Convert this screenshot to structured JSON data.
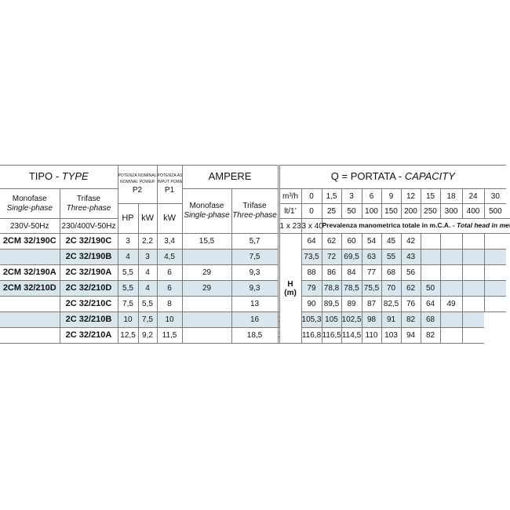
{
  "headers": {
    "tipo": "TIPO",
    "type": "TYPE",
    "potenza_nominale": "POTENZA NOMINALE",
    "nominal_power": "NOMINAL POWER",
    "p2": "P2",
    "potenza_assorbita": "POTENZA ASSORBITA",
    "input_power": "INPUT POWER",
    "p1": "P1",
    "ampere": "AMPERE",
    "q_portata": "Q = PORTATA",
    "capacity": "CAPACITY",
    "monofase": "Monofase",
    "single_phase": "Single-phase",
    "trifase": "Trifase",
    "three_phase": "Three-phase",
    "hp": "HP",
    "kw_p2": "kW",
    "kw_p1": "kW",
    "amp_monofase": "Monofase",
    "amp_single_phase": "Single-phase",
    "amp_trifase": "Trifase",
    "amp_three_phase": "Three-phase",
    "volt_mono": "230V-50Hz",
    "volt_tri": "230/400V-50Hz",
    "amp_volt_mono": "1 x 230V",
    "amp_volt_tri": "3 x 400V",
    "unit_m3h": "m³/h",
    "unit_ltmin": "lt/1’",
    "head_note": "Prevalenza manometrica totale in m.C.A.",
    "head_note_en": "Total head in meters w.c.",
    "h_label": "H",
    "h_unit": "(m)"
  },
  "flow_m3h": [
    "0",
    "1,5",
    "3",
    "6",
    "9",
    "12",
    "15",
    "18",
    "24",
    "30"
  ],
  "flow_lmin": [
    "0",
    "25",
    "50",
    "100",
    "150",
    "200",
    "250",
    "300",
    "400",
    "500"
  ],
  "rows": [
    {
      "mono": "2CM 32/190C",
      "tri": "2C 32/190C",
      "hp": "3",
      "kw2": "2,2",
      "kw1": "3,4",
      "amp_mono": "15,5",
      "amp_tri": "5,7",
      "heads": [
        "64",
        "62",
        "60",
        "54",
        "45",
        "42",
        "",
        "",
        "",
        ""
      ]
    },
    {
      "mono": "",
      "tri": "2C 32/190B",
      "hp": "4",
      "kw2": "3",
      "kw1": "4,5",
      "amp_mono": "",
      "amp_tri": "7,5",
      "heads": [
        "73,5",
        "72",
        "69,5",
        "63",
        "55",
        "43",
        "",
        "",
        "",
        ""
      ]
    },
    {
      "mono": "2CM 32/190A",
      "tri": "2C 32/190A",
      "hp": "5,5",
      "kw2": "4",
      "kw1": "6",
      "amp_mono": "29",
      "amp_tri": "9,3",
      "heads": [
        "88",
        "86",
        "84",
        "77",
        "68",
        "56",
        "",
        "",
        "",
        ""
      ]
    },
    {
      "mono": "2CM 32/210D",
      "tri": "2C 32/210D",
      "hp": "5,5",
      "kw2": "4",
      "kw1": "6",
      "amp_mono": "29",
      "amp_tri": "9,3",
      "heads": [
        "79",
        "78,8",
        "78,5",
        "75,5",
        "70",
        "62",
        "50",
        "",
        "",
        ""
      ]
    },
    {
      "mono": "",
      "tri": "2C 32/210C",
      "hp": "7,5",
      "kw2": "5,5",
      "kw1": "8",
      "amp_mono": "",
      "amp_tri": "13",
      "heads": [
        "90",
        "89,5",
        "89",
        "87",
        "82,5",
        "76",
        "64",
        "49",
        "",
        ""
      ]
    },
    {
      "mono": "",
      "tri": "2C 32/210B",
      "hp": "10",
      "kw2": "7,5",
      "kw1": "10",
      "amp_mono": "",
      "amp_tri": "16",
      "heads": [
        "105,5",
        "105,3",
        "105",
        "102,5",
        "98",
        "91",
        "82",
        "68",
        "",
        ""
      ]
    },
    {
      "mono": "",
      "tri": "2C 32/210A",
      "hp": "12,5",
      "kw2": "9,2",
      "kw1": "11,5",
      "amp_mono": "",
      "amp_tri": "18,5",
      "heads": [
        "117",
        "116,8",
        "116,5",
        "114,5",
        "110",
        "103",
        "94",
        "82",
        "",
        ""
      ]
    }
  ],
  "colors": {
    "row_shade": "#d9e6ee",
    "border": "#7a7a7a"
  }
}
